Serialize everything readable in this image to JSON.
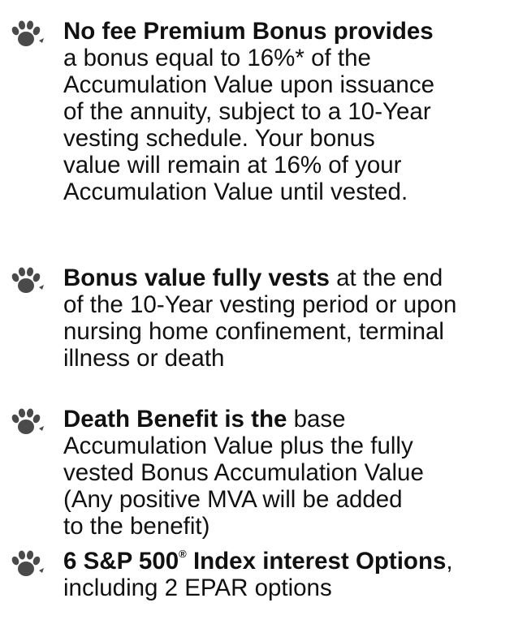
{
  "items": [
    {
      "first": [
        {
          "text": "No fee Premium Bonus provides",
          "bold": true
        }
      ],
      "lines": [
        "a bonus equal to 16%* of the",
        "Accumulation Value upon issuance",
        "of the annuity, subject to a 10-Year",
        "vesting schedule. Your bonus",
        "value will remain at 16% of your",
        "Accumulation Value until vested."
      ]
    },
    {
      "first": [
        {
          "text": "Bonus value fully vests",
          "bold": true
        },
        {
          "text": " at the end"
        }
      ],
      "lines": [
        "of the 10-Year vesting period or upon",
        "nursing home confinement, terminal",
        "illness or death"
      ]
    },
    {
      "first": [
        {
          "text": "Death Benefit is the",
          "bold": true
        },
        {
          "text": " base"
        }
      ],
      "lines": [
        "Accumulation Value plus the fully",
        "vested Bonus Accumulation Value",
        "(Any positive MVA will be added",
        "to the benefit)"
      ]
    },
    {
      "first": [
        {
          "text": "6 S&P 500",
          "bold": true
        },
        {
          "text": "®",
          "bold": true,
          "sup": true
        },
        {
          "text": " Index interest Options",
          "bold": true
        },
        {
          "text": ","
        }
      ],
      "lines": [
        "including 2 EPAR options"
      ]
    }
  ]
}
